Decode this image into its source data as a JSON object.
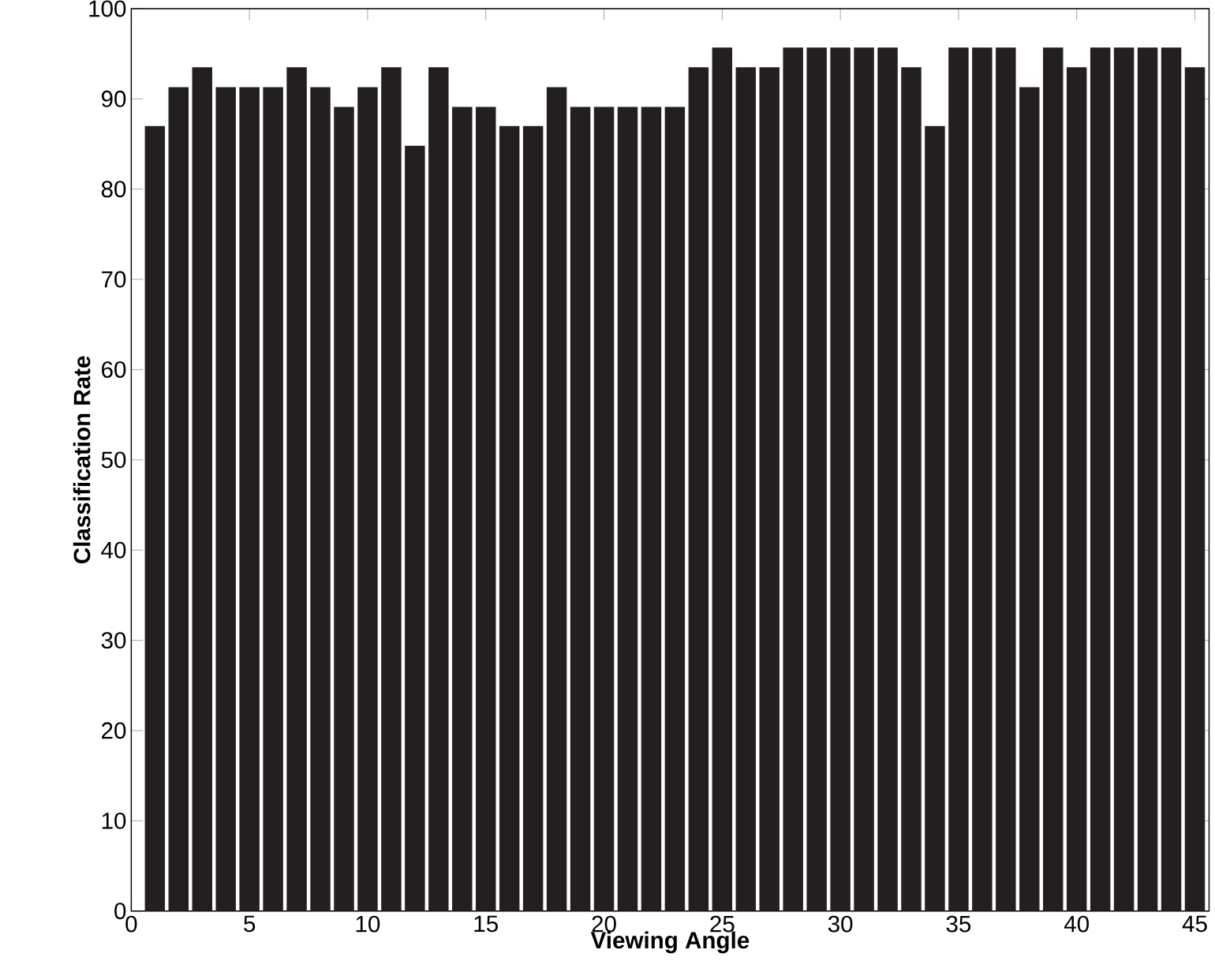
{
  "chart_data": {
    "type": "bar",
    "xlabel": "Viewing Angle",
    "ylabel": "Classification Rate",
    "x": [
      1,
      2,
      3,
      4,
      5,
      6,
      7,
      8,
      9,
      10,
      11,
      12,
      13,
      14,
      15,
      16,
      17,
      18,
      19,
      20,
      21,
      22,
      23,
      24,
      25,
      26,
      27,
      28,
      29,
      30,
      31,
      32,
      33,
      34,
      35,
      36,
      37,
      38,
      39,
      40,
      41,
      42,
      43,
      44,
      45
    ],
    "values": [
      87,
      91.3,
      93.5,
      91.3,
      91.3,
      91.3,
      93.5,
      91.3,
      89.1,
      91.3,
      93.5,
      84.8,
      93.5,
      89.1,
      89.1,
      87,
      87,
      91.3,
      89.1,
      89.1,
      89.1,
      89.1,
      89.1,
      93.5,
      95.7,
      93.5,
      93.5,
      95.7,
      95.7,
      95.7,
      95.7,
      95.7,
      93.5,
      87,
      95.7,
      95.7,
      95.7,
      91.3,
      95.7,
      93.5,
      95.7,
      95.7,
      95.7,
      95.7,
      93.5
    ],
    "color": "#231f20",
    "xlim": [
      0,
      45.6
    ],
    "ylim": [
      0,
      100
    ],
    "xticks": [
      0,
      5,
      10,
      15,
      20,
      25,
      30,
      35,
      40,
      45
    ],
    "yticks": [
      0,
      10,
      20,
      30,
      40,
      50,
      60,
      70,
      80,
      90,
      100
    ],
    "grid": false
  }
}
